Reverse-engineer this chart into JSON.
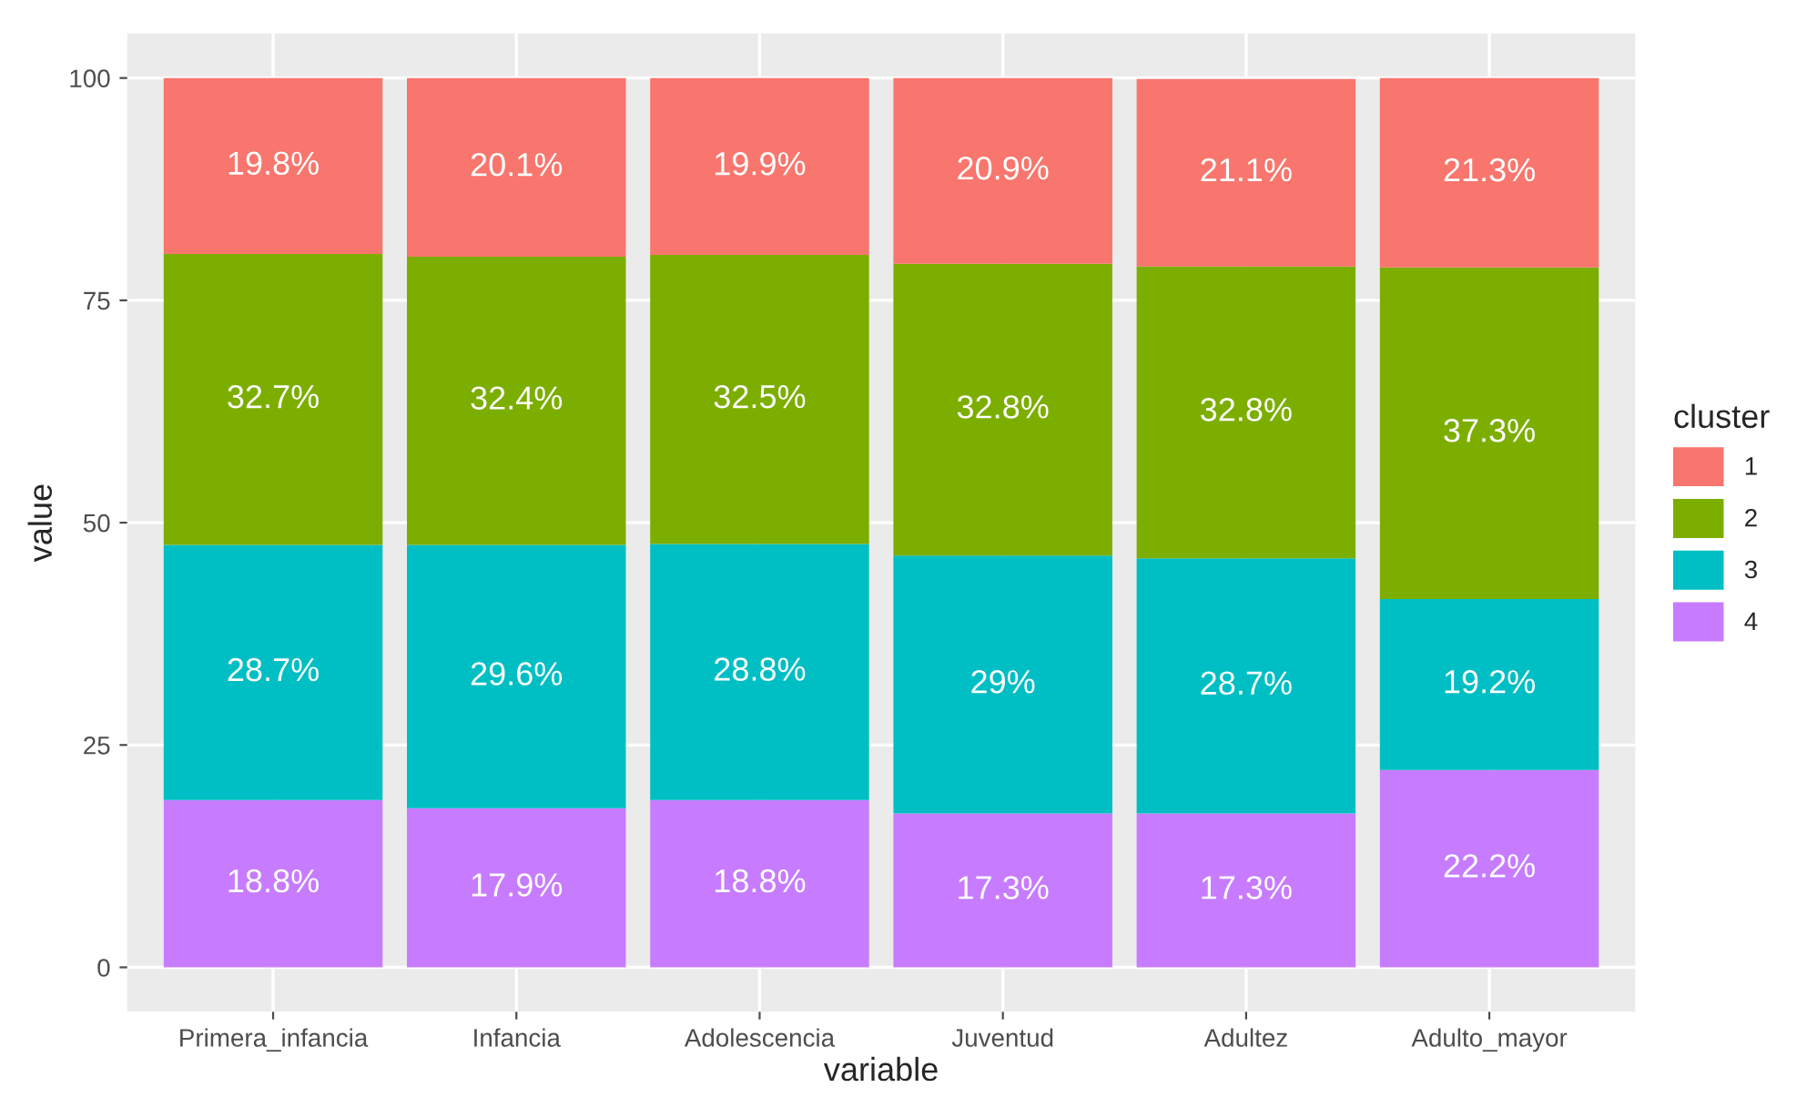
{
  "chart_data": {
    "type": "bar",
    "stacked": true,
    "xlabel": "variable",
    "ylabel": "value",
    "legend_title": "cluster",
    "legend": "right",
    "grid": true,
    "categories": [
      "Primera_infancia",
      "Infancia",
      "Adolescencia",
      "Juventud",
      "Adultez",
      "Adulto_mayor"
    ],
    "ylim": [
      -5,
      105
    ],
    "yticks": [
      0,
      25,
      50,
      75,
      100
    ],
    "series": [
      {
        "name": "4",
        "color": "#c77cff",
        "values": [
          18.8,
          17.9,
          18.8,
          17.3,
          17.3,
          22.2
        ],
        "value_labels": [
          "18.8%",
          "17.9%",
          "18.8%",
          "17.3%",
          "17.3%",
          "22.2%"
        ]
      },
      {
        "name": "3",
        "color": "#00bfc4",
        "values": [
          28.7,
          29.6,
          28.8,
          29,
          28.7,
          19.2
        ],
        "value_labels": [
          "28.7%",
          "29.6%",
          "28.8%",
          "29%",
          "28.7%",
          "19.2%"
        ]
      },
      {
        "name": "2",
        "color": "#7cae00",
        "values": [
          32.7,
          32.4,
          32.5,
          32.8,
          32.8,
          37.3
        ],
        "value_labels": [
          "32.7%",
          "32.4%",
          "32.5%",
          "32.8%",
          "32.8%",
          "37.3%"
        ]
      },
      {
        "name": "1",
        "color": "#f8766d",
        "values": [
          19.8,
          20.1,
          19.9,
          20.9,
          21.1,
          21.3
        ],
        "value_labels": [
          "19.8%",
          "20.1%",
          "19.9%",
          "20.9%",
          "21.1%",
          "21.3%"
        ]
      }
    ]
  }
}
